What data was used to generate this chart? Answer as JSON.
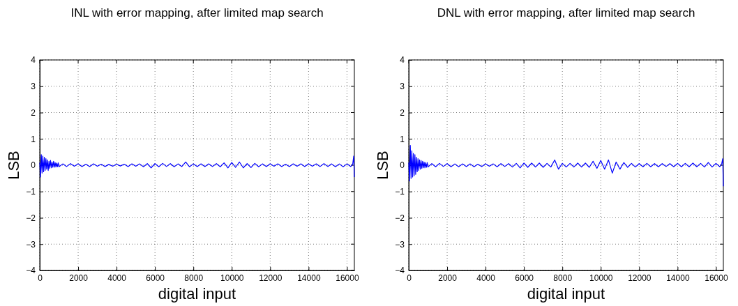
{
  "chart_data": [
    {
      "type": "line",
      "title": "INL with error mapping, after limited map search",
      "xlabel": "digital input",
      "ylabel": "LSB",
      "x": [
        0,
        40,
        80,
        120,
        160,
        200,
        240,
        280,
        320,
        360,
        400,
        440,
        480,
        520,
        560,
        600,
        640,
        680,
        720,
        760,
        800,
        840,
        880,
        920,
        960,
        1000,
        1200,
        1400,
        1600,
        1800,
        2000,
        2200,
        2400,
        2600,
        2800,
        3000,
        3200,
        3400,
        3600,
        3800,
        4000,
        4200,
        4400,
        4600,
        4800,
        5000,
        5200,
        5400,
        5600,
        5800,
        6000,
        6200,
        6400,
        6600,
        6800,
        7000,
        7200,
        7400,
        7600,
        7800,
        8000,
        8200,
        8400,
        8600,
        8800,
        9000,
        9200,
        9400,
        9600,
        9800,
        10000,
        10200,
        10400,
        10600,
        10800,
        11000,
        11200,
        11400,
        11600,
        11800,
        12000,
        12200,
        12400,
        12600,
        12800,
        13000,
        13200,
        13400,
        13600,
        13800,
        14000,
        14200,
        14400,
        14600,
        14800,
        15000,
        15200,
        15400,
        15600,
        15800,
        16000,
        16200,
        16300,
        16350,
        16384
      ],
      "series": [
        {
          "color": "#0000ff",
          "values": [
            0.1,
            -0.45,
            0.4,
            -0.3,
            0.35,
            -0.25,
            0.3,
            -0.2,
            0.25,
            -0.15,
            0.2,
            -0.2,
            0.15,
            -0.12,
            0.18,
            -0.1,
            0.12,
            -0.08,
            0.15,
            -0.08,
            0.1,
            -0.07,
            0.08,
            -0.06,
            0.09,
            -0.06,
            0.05,
            -0.05,
            0.06,
            -0.04,
            0.05,
            -0.05,
            0.04,
            -0.05,
            0.05,
            -0.04,
            0.04,
            -0.05,
            0.03,
            -0.04,
            0.04,
            -0.03,
            0.04,
            -0.05,
            0.05,
            -0.04,
            0.05,
            -0.06,
            0.06,
            -0.1,
            0.06,
            -0.06,
            0.07,
            -0.05,
            0.06,
            -0.06,
            0.05,
            -0.05,
            0.12,
            -0.06,
            0.05,
            -0.05,
            0.05,
            -0.05,
            0.05,
            -0.05,
            0.06,
            -0.06,
            0.09,
            -0.1,
            0.1,
            -0.08,
            0.12,
            -0.1,
            0.06,
            -0.09,
            0.07,
            -0.06,
            0.05,
            -0.05,
            0.05,
            -0.04,
            0.05,
            -0.05,
            0.04,
            -0.05,
            0.05,
            -0.04,
            0.05,
            -0.05,
            0.05,
            -0.04,
            0.05,
            -0.05,
            0.06,
            -0.05,
            0.05,
            -0.06,
            0.05,
            -0.06,
            0.05,
            -0.05,
            0.05,
            0.35,
            -0.45
          ]
        }
      ],
      "xlim": [
        0,
        16384
      ],
      "xticks": [
        0,
        2000,
        4000,
        6000,
        8000,
        10000,
        12000,
        14000,
        16000
      ],
      "ylim": [
        -4,
        4
      ],
      "yticks": [
        -4,
        -3,
        -2,
        -1,
        0,
        1,
        2,
        3,
        4
      ],
      "grid": true
    },
    {
      "type": "line",
      "title": "DNL with error mapping, after limited map search",
      "xlabel": "digital input",
      "ylabel": "LSB",
      "x": [
        0,
        40,
        80,
        120,
        160,
        200,
        240,
        280,
        320,
        360,
        400,
        440,
        480,
        520,
        560,
        600,
        640,
        680,
        720,
        760,
        800,
        840,
        880,
        920,
        960,
        1000,
        1200,
        1400,
        1600,
        1800,
        2000,
        2200,
        2400,
        2600,
        2800,
        3000,
        3200,
        3400,
        3600,
        3800,
        4000,
        4200,
        4400,
        4600,
        4800,
        5000,
        5200,
        5400,
        5600,
        5800,
        6000,
        6200,
        6400,
        6600,
        6800,
        7000,
        7200,
        7400,
        7600,
        7800,
        8000,
        8200,
        8400,
        8600,
        8800,
        9000,
        9200,
        9400,
        9600,
        9800,
        10000,
        10200,
        10400,
        10600,
        10800,
        11000,
        11200,
        11400,
        11600,
        11800,
        12000,
        12200,
        12400,
        12600,
        12800,
        13000,
        13200,
        13400,
        13600,
        13800,
        14000,
        14200,
        14400,
        14600,
        14800,
        15000,
        15200,
        15400,
        15600,
        15800,
        16000,
        16200,
        16300,
        16350,
        16384
      ],
      "series": [
        {
          "color": "#0000ff",
          "values": [
            0.1,
            -0.6,
            0.75,
            -0.5,
            0.55,
            -0.45,
            0.45,
            -0.4,
            0.4,
            -0.35,
            0.3,
            -0.25,
            0.25,
            -0.2,
            0.2,
            -0.15,
            0.18,
            -0.12,
            0.15,
            -0.1,
            0.12,
            -0.1,
            0.1,
            -0.08,
            0.1,
            -0.07,
            0.06,
            -0.06,
            0.07,
            -0.05,
            0.06,
            -0.06,
            0.05,
            -0.06,
            0.05,
            -0.05,
            0.05,
            -0.06,
            0.04,
            -0.05,
            0.05,
            -0.04,
            0.05,
            -0.06,
            0.06,
            -0.05,
            0.06,
            -0.07,
            0.07,
            -0.1,
            0.08,
            -0.08,
            0.08,
            -0.07,
            0.08,
            -0.08,
            0.07,
            -0.07,
            0.2,
            -0.15,
            0.07,
            -0.07,
            0.07,
            -0.07,
            0.08,
            -0.07,
            0.08,
            -0.08,
            0.15,
            -0.12,
            0.18,
            -0.15,
            0.2,
            -0.3,
            0.12,
            -0.15,
            0.1,
            -0.08,
            0.07,
            -0.07,
            0.06,
            -0.06,
            0.07,
            -0.06,
            0.06,
            -0.06,
            0.06,
            -0.05,
            0.06,
            -0.06,
            0.07,
            -0.06,
            0.07,
            -0.06,
            0.08,
            -0.06,
            0.07,
            -0.07,
            0.1,
            -0.07,
            0.07,
            -0.06,
            0.06,
            0.25,
            -0.8
          ]
        }
      ],
      "xlim": [
        0,
        16384
      ],
      "xticks": [
        0,
        2000,
        4000,
        6000,
        8000,
        10000,
        12000,
        14000,
        16000
      ],
      "ylim": [
        -4,
        4
      ],
      "yticks": [
        -4,
        -3,
        -2,
        -1,
        0,
        1,
        2,
        3,
        4
      ],
      "grid": true
    }
  ]
}
